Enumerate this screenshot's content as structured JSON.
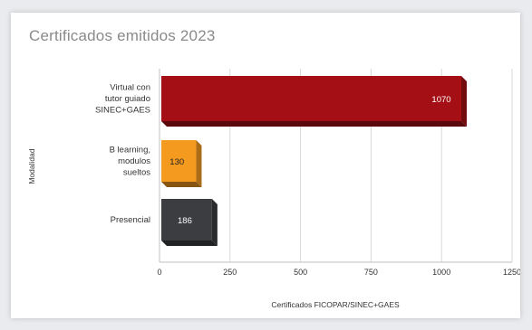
{
  "title": "Certificados emitidos 2023",
  "chart_data": {
    "type": "bar",
    "orientation": "horizontal",
    "title": "Certificados emitidos 2023",
    "xlabel": "Certificados FICOPAR/SINEC+GAES",
    "ylabel": "Modalidad",
    "xlim": [
      0,
      1250
    ],
    "xticks": [
      0,
      250,
      500,
      750,
      1000,
      1250
    ],
    "categories": [
      [
        "Virtual con",
        "tutor guiado",
        "SINEC+GAES"
      ],
      [
        "B learning,",
        "modulos",
        "sueltos"
      ],
      [
        "Presencial"
      ]
    ],
    "values": [
      1070,
      130,
      186
    ],
    "data_labels": [
      "1070",
      "130",
      "186"
    ],
    "colors": [
      "#a30f14",
      "#f39a1f",
      "#3b3d40"
    ],
    "grid": true,
    "legend": "none"
  }
}
